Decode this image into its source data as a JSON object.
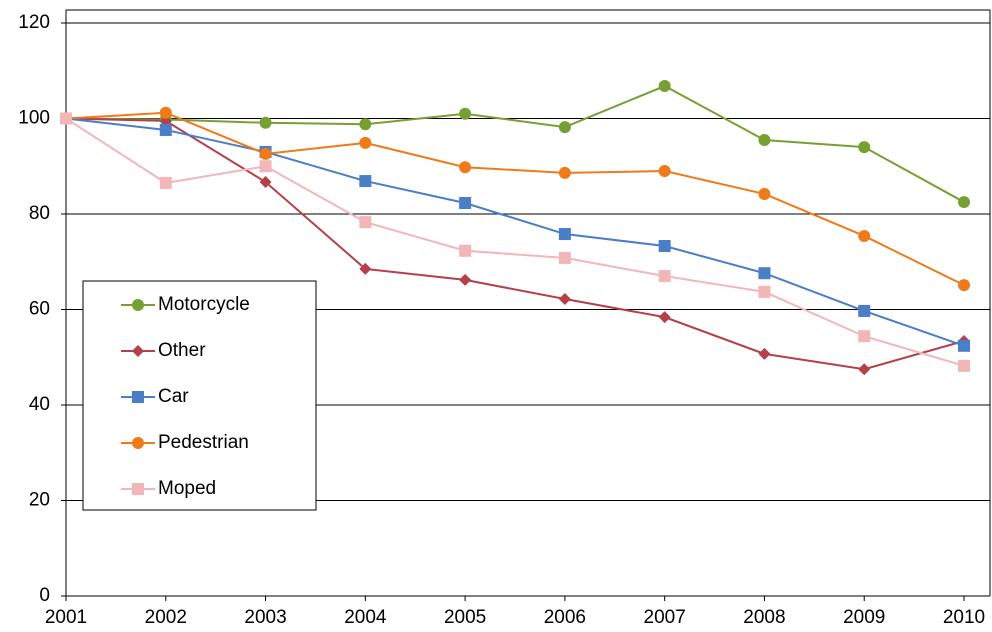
{
  "chart_data": {
    "type": "line",
    "categories": [
      "2001",
      "2002",
      "2003",
      "2004",
      "2005",
      "2006",
      "2007",
      "2008",
      "2009",
      "2010"
    ],
    "series": [
      {
        "name": "Motorcycle",
        "color": "#77a033",
        "marker": "circle",
        "values": [
          100,
          99.8,
          99.1,
          98.8,
          101,
          98.2,
          106.8,
          95.5,
          94,
          82.5
        ]
      },
      {
        "name": "Other",
        "color": "#b5404a",
        "marker": "diamond",
        "values": [
          100,
          99.5,
          86.7,
          68.5,
          66.2,
          62.2,
          58.4,
          50.7,
          47.5,
          53.4
        ]
      },
      {
        "name": "Car",
        "color": "#4a7ec6",
        "marker": "square",
        "values": [
          100,
          97.6,
          93,
          86.9,
          82.3,
          75.8,
          73.3,
          67.6,
          59.7,
          52.4
        ]
      },
      {
        "name": "Pedestrian",
        "color": "#ee7a1a",
        "marker": "circle",
        "values": [
          100,
          101.2,
          92.6,
          94.9,
          89.8,
          88.6,
          89,
          84.2,
          75.4,
          65.1
        ]
      },
      {
        "name": "Moped",
        "color": "#f3b6b8",
        "marker": "square",
        "values": [
          100,
          86.5,
          90,
          78.3,
          72.3,
          70.8,
          67,
          63.7,
          54.4,
          48.2
        ]
      }
    ],
    "ylim": [
      0,
      120
    ],
    "yticks": [
      0,
      20,
      40,
      60,
      80,
      100,
      120
    ],
    "grid": true,
    "legend": "lower-left"
  }
}
